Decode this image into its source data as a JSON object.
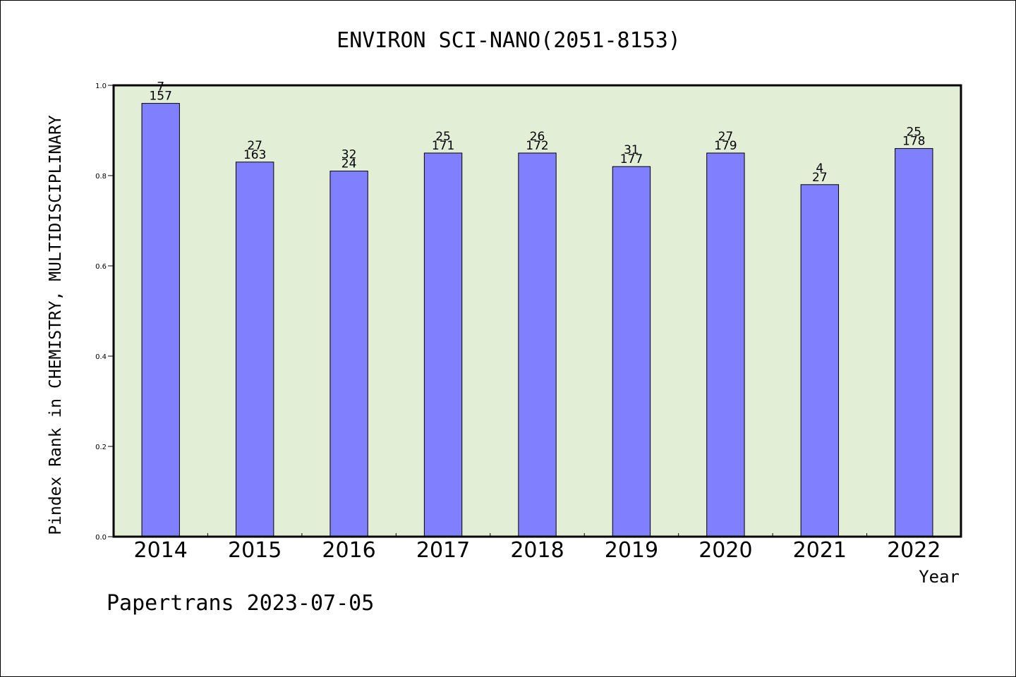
{
  "chart_data": {
    "type": "bar",
    "title": "ENVIRON SCI-NANO(2051-8153)",
    "xlabel": "Year",
    "ylabel": "Pindex Rank in CHEMISTRY, MULTIDISCIPLINARY",
    "categories": [
      "2014",
      "2015",
      "2016",
      "2017",
      "2018",
      "2019",
      "2020",
      "2021",
      "2022"
    ],
    "values": [
      0.96,
      0.83,
      0.81,
      0.85,
      0.85,
      0.82,
      0.85,
      0.78,
      0.86
    ],
    "bar_labels_top": [
      "7",
      "27",
      "32",
      "25",
      "26",
      "31",
      "27",
      "4",
      "25"
    ],
    "bar_labels_bottom": [
      "157",
      "163",
      "24",
      "171",
      "172",
      "177",
      "179",
      "27",
      "178"
    ],
    "ylim": [
      0,
      1.0
    ],
    "yticks": [
      "0.0",
      "0.2",
      "0.4",
      "0.6",
      "0.8",
      "1.0"
    ],
    "grid": false,
    "colors": {
      "bar": "#8080ff",
      "plot_background": "#e2efd6",
      "axes": "#000000"
    }
  },
  "footer": {
    "text": "Papertrans 2023-07-05"
  }
}
